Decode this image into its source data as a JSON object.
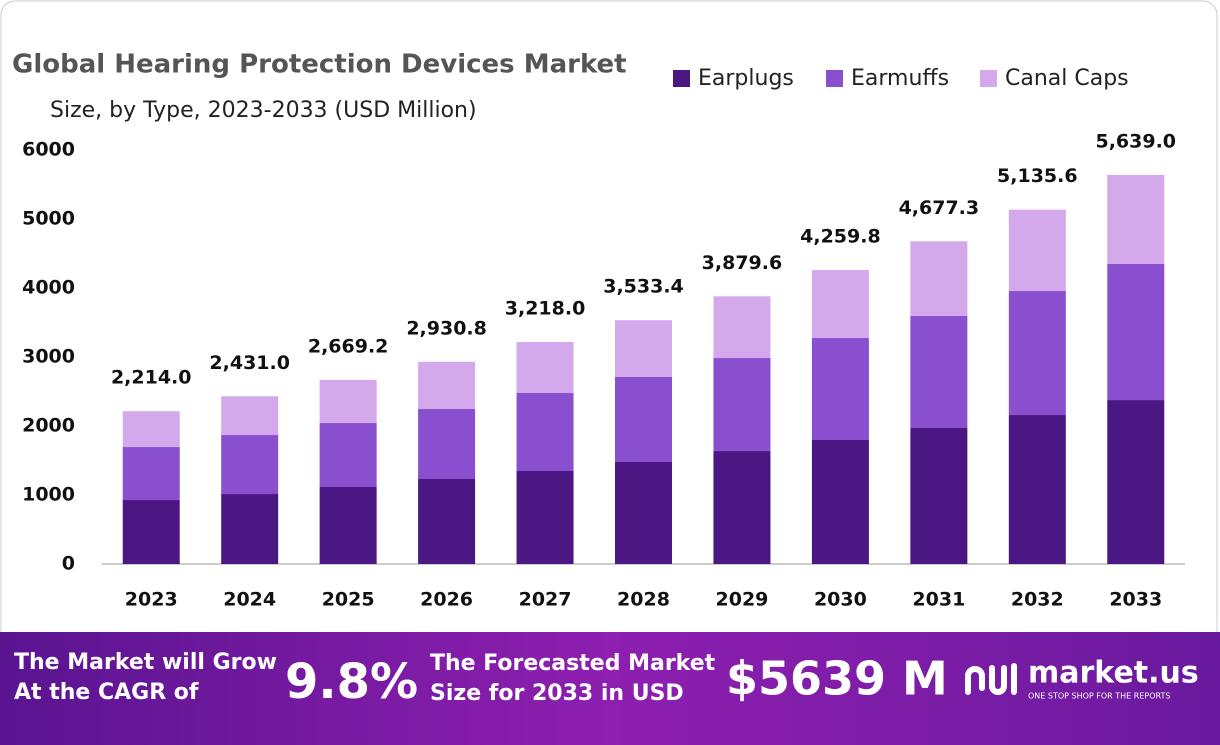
{
  "chart_data": {
    "type": "stacked-bar",
    "title": "Global Hearing Protection Devices Market",
    "subtitle": "Size, by Type, 2023-2033 (USD Million)",
    "categories": [
      "2023",
      "2024",
      "2025",
      "2026",
      "2027",
      "2028",
      "2029",
      "2030",
      "2031",
      "2032",
      "2033"
    ],
    "series": [
      {
        "name": "Earplugs",
        "color": "#4b1783",
        "values": [
          927,
          1014,
          1116,
          1232,
          1348,
          1478,
          1637,
          1797,
          1971,
          2159,
          2376
        ]
      },
      {
        "name": "Earmuffs",
        "color": "#8a4fcf",
        "values": [
          768,
          855,
          927,
          1014,
          1130,
          1232,
          1348,
          1478,
          1623,
          1797,
          1972
        ]
      },
      {
        "name": "Canal Caps",
        "color": "#d4a9eb",
        "values": [
          519,
          562,
          626.2,
          684.8,
          740,
          823.4,
          894.6,
          984.8,
          1083.3,
          1179.6,
          1291
        ]
      }
    ],
    "totals": [
      2214.0,
      2431.0,
      2669.2,
      2930.8,
      3218.0,
      3533.4,
      3879.6,
      4259.8,
      4677.3,
      5135.6,
      5639.0
    ],
    "total_labels": [
      "2,214.0",
      "2,431.0",
      "2,669.2",
      "2,930.8",
      "3,218.0",
      "3,533.4",
      "3,879.6",
      "4,259.8",
      "4,677.3",
      "5,135.6",
      "5,639.0"
    ],
    "ylim": [
      0,
      6000
    ],
    "yticks": [
      0,
      1000,
      2000,
      3000,
      4000,
      5000,
      6000
    ],
    "grid": false,
    "legend": "top-right"
  },
  "banner": {
    "cagr_text": [
      "The Market will Grow",
      "At the CAGR of"
    ],
    "cagr": "9.8%",
    "forecast_text": [
      "The Forecasted Market",
      "Size for 2033 in USD"
    ],
    "forecast": "$5639 M",
    "brand": "market.us",
    "tagline": "ONE STOP SHOP FOR THE REPORTS"
  }
}
